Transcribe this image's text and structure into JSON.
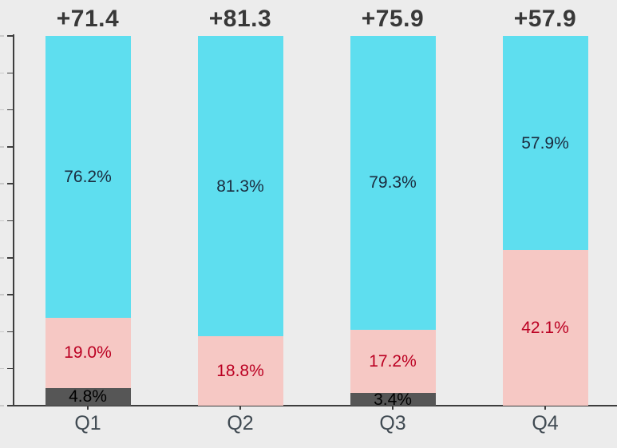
{
  "chart_data": {
    "type": "bar",
    "variant": "100-percent-stacked-column",
    "title": "",
    "xlabel": "",
    "ylabel": "",
    "categories": [
      "Q1",
      "Q2",
      "Q3",
      "Q4"
    ],
    "bar_totals_labels": [
      "+71.4",
      "+81.3",
      "+75.9",
      "+57.9"
    ],
    "bar_totals_values": [
      71.4,
      81.3,
      75.9,
      57.9
    ],
    "series": [
      {
        "name": "top-cyan",
        "color": "#5EDEEF",
        "label_color": "#1B2B3E",
        "values": [
          76.2,
          81.3,
          79.3,
          57.9
        ],
        "labels": [
          "76.2%",
          "81.3%",
          "79.3%",
          "57.9%"
        ]
      },
      {
        "name": "middle-pink",
        "color": "#F6C8C4",
        "label_color": "#BB0022",
        "values": [
          19.0,
          18.8,
          17.2,
          42.1
        ],
        "labels": [
          "19.0%",
          "18.8%",
          "17.2%",
          "42.1%"
        ]
      },
      {
        "name": "bottom-gray",
        "color": "#565656",
        "label_color": "#000000",
        "values": [
          4.8,
          0,
          3.4,
          0
        ],
        "labels": [
          "4.8%",
          "",
          "3.4%",
          ""
        ]
      }
    ],
    "ylim": [
      0,
      100
    ],
    "y_ticks_count": 11,
    "y_tick_labels_visible": false,
    "grid": false,
    "legend": false
  },
  "styles": {
    "background": "#ECECEC",
    "axis_color": "#3D3D3D",
    "faint_edge_tick_color": "#C9C9C9",
    "total_label_color": "#383838",
    "category_label_color": "#404A52"
  }
}
